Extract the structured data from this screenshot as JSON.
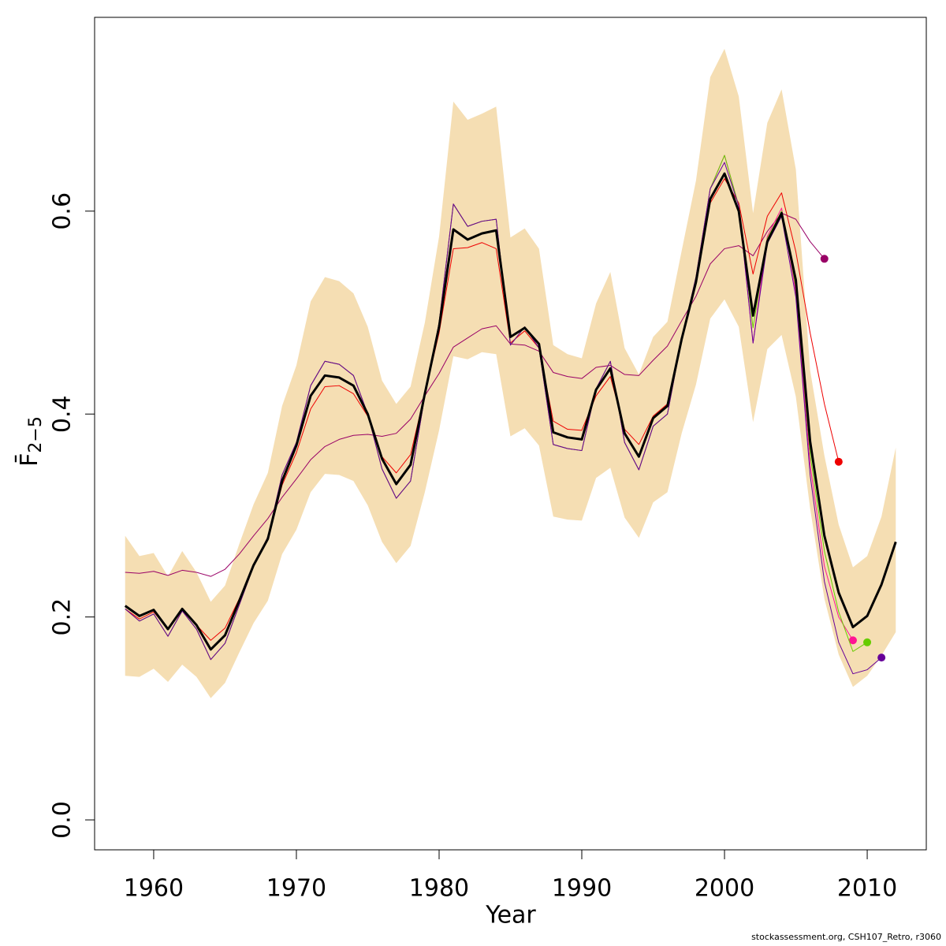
{
  "chart_data": {
    "type": "line",
    "xlabel": "Year",
    "ylabel": "F̄",
    "ylabel_subscript": "2−5",
    "footnote": "stockassessment.org, CSH107_Retro, r3060",
    "x": [
      1958,
      1959,
      1960,
      1961,
      1962,
      1963,
      1964,
      1965,
      1966,
      1967,
      1968,
      1969,
      1970,
      1971,
      1972,
      1973,
      1974,
      1975,
      1976,
      1977,
      1978,
      1979,
      1980,
      1981,
      1982,
      1983,
      1984,
      1985,
      1986,
      1987,
      1988,
      1989,
      1990,
      1991,
      1992,
      1993,
      1994,
      1995,
      1996,
      1997,
      1998,
      1999,
      2000,
      2001,
      2002,
      2003,
      2004,
      2005,
      2006,
      2007,
      2008,
      2009,
      2010,
      2011,
      2012
    ],
    "xlim": [
      1955.86,
      2014.14
    ],
    "xticks": [
      1960,
      1970,
      1980,
      1990,
      2000,
      2010
    ],
    "ylim": [
      -0.0295,
      0.791
    ],
    "yticks": [
      {
        "value": 0,
        "label": "0.0"
      },
      0.2,
      0.4,
      0.6
    ],
    "band": {
      "color": "#f5deb3",
      "upper": [
        0.28,
        0.26,
        0.263,
        0.24,
        0.265,
        0.244,
        0.215,
        0.231,
        0.272,
        0.311,
        0.342,
        0.408,
        0.448,
        0.511,
        0.535,
        0.531,
        0.519,
        0.486,
        0.433,
        0.41,
        0.427,
        0.49,
        0.575,
        0.708,
        0.69,
        0.696,
        0.703,
        0.574,
        0.583,
        0.563,
        0.468,
        0.459,
        0.455,
        0.509,
        0.54,
        0.465,
        0.439,
        0.476,
        0.491,
        0.561,
        0.63,
        0.732,
        0.76,
        0.713,
        0.598,
        0.687,
        0.72,
        0.641,
        0.443,
        0.359,
        0.291,
        0.249,
        0.26,
        0.299,
        0.367
      ],
      "lower": [
        0.142,
        0.141,
        0.149,
        0.136,
        0.153,
        0.141,
        0.12,
        0.135,
        0.165,
        0.194,
        0.216,
        0.262,
        0.286,
        0.323,
        0.341,
        0.34,
        0.334,
        0.31,
        0.274,
        0.253,
        0.27,
        0.323,
        0.384,
        0.457,
        0.454,
        0.461,
        0.459,
        0.378,
        0.386,
        0.369,
        0.299,
        0.296,
        0.295,
        0.337,
        0.347,
        0.298,
        0.278,
        0.313,
        0.323,
        0.381,
        0.429,
        0.494,
        0.513,
        0.486,
        0.392,
        0.464,
        0.478,
        0.417,
        0.307,
        0.218,
        0.163,
        0.131,
        0.142,
        0.162,
        0.185
      ]
    },
    "series": [
      {
        "color": "#990066",
        "end_marker": true,
        "values": [
          0.244,
          0.243,
          0.245,
          0.241,
          0.246,
          0.244,
          0.24,
          0.247,
          0.262,
          0.28,
          0.297,
          0.318,
          0.336,
          0.355,
          0.368,
          0.375,
          0.379,
          0.38,
          0.378,
          0.381,
          0.395,
          0.418,
          0.44,
          0.466,
          0.475,
          0.484,
          0.487,
          0.469,
          0.468,
          0.462,
          0.441,
          0.437,
          0.435,
          0.446,
          0.448,
          0.439,
          0.438,
          0.453,
          0.467,
          0.492,
          0.516,
          0.548,
          0.563,
          0.566,
          0.556,
          0.58,
          0.598,
          0.592,
          0.57,
          0.553,
          null,
          null,
          null,
          null,
          null
        ]
      },
      {
        "color": "#ee0000",
        "end_marker": true,
        "values": [
          0.208,
          0.198,
          0.205,
          0.188,
          0.206,
          0.192,
          0.177,
          0.189,
          0.218,
          0.25,
          0.277,
          0.33,
          0.362,
          0.405,
          0.427,
          0.428,
          0.42,
          0.398,
          0.358,
          0.342,
          0.36,
          0.42,
          0.48,
          0.563,
          0.564,
          0.569,
          0.563,
          0.47,
          0.482,
          0.465,
          0.393,
          0.385,
          0.384,
          0.418,
          0.437,
          0.385,
          0.37,
          0.398,
          0.41,
          0.474,
          0.53,
          0.608,
          0.632,
          0.608,
          0.538,
          0.595,
          0.618,
          0.56,
          0.48,
          0.41,
          0.353,
          null,
          null,
          null,
          null
        ]
      },
      {
        "color": "#ff1493",
        "end_marker": true,
        "values": [
          0.208,
          0.196,
          0.203,
          0.181,
          0.206,
          0.188,
          0.158,
          0.174,
          0.212,
          0.25,
          0.279,
          0.34,
          0.372,
          0.428,
          0.452,
          0.449,
          0.438,
          0.4,
          0.346,
          0.317,
          0.334,
          0.418,
          0.49,
          0.607,
          0.585,
          0.59,
          0.592,
          0.468,
          0.486,
          0.465,
          0.37,
          0.366,
          0.364,
          0.425,
          0.452,
          0.372,
          0.345,
          0.388,
          0.4,
          0.474,
          0.535,
          0.622,
          0.655,
          0.605,
          0.47,
          0.575,
          0.603,
          0.52,
          0.35,
          0.25,
          0.2,
          0.177,
          null,
          null,
          null
        ]
      },
      {
        "color": "#66cc00",
        "end_marker": true,
        "values": [
          0.208,
          0.196,
          0.203,
          0.181,
          0.206,
          0.188,
          0.158,
          0.174,
          0.212,
          0.25,
          0.279,
          0.34,
          0.372,
          0.428,
          0.452,
          0.449,
          0.438,
          0.4,
          0.346,
          0.317,
          0.334,
          0.418,
          0.49,
          0.607,
          0.585,
          0.59,
          0.592,
          0.468,
          0.486,
          0.465,
          0.37,
          0.366,
          0.364,
          0.425,
          0.452,
          0.372,
          0.345,
          0.388,
          0.4,
          0.474,
          0.535,
          0.622,
          0.655,
          0.605,
          0.485,
          0.573,
          0.6,
          0.525,
          0.36,
          0.265,
          0.205,
          0.166,
          0.175,
          null,
          null
        ]
      },
      {
        "color": "#660099",
        "end_marker": true,
        "values": [
          0.208,
          0.196,
          0.203,
          0.181,
          0.206,
          0.188,
          0.158,
          0.174,
          0.212,
          0.25,
          0.279,
          0.34,
          0.372,
          0.428,
          0.452,
          0.449,
          0.438,
          0.4,
          0.346,
          0.317,
          0.334,
          0.418,
          0.49,
          0.607,
          0.585,
          0.59,
          0.592,
          0.468,
          0.486,
          0.465,
          0.37,
          0.366,
          0.364,
          0.425,
          0.452,
          0.372,
          0.345,
          0.388,
          0.4,
          0.474,
          0.535,
          0.622,
          0.648,
          0.605,
          0.47,
          0.568,
          0.595,
          0.515,
          0.34,
          0.235,
          0.175,
          0.144,
          0.148,
          0.16,
          null
        ]
      },
      {
        "color": "#000000",
        "end_marker": false,
        "values": [
          0.211,
          0.201,
          0.207,
          0.188,
          0.208,
          0.192,
          0.168,
          0.182,
          0.216,
          0.251,
          0.277,
          0.334,
          0.369,
          0.418,
          0.438,
          0.436,
          0.428,
          0.4,
          0.356,
          0.331,
          0.35,
          0.42,
          0.486,
          0.582,
          0.572,
          0.578,
          0.581,
          0.476,
          0.485,
          0.469,
          0.382,
          0.377,
          0.375,
          0.424,
          0.445,
          0.381,
          0.358,
          0.396,
          0.408,
          0.474,
          0.53,
          0.612,
          0.637,
          0.6,
          0.497,
          0.57,
          0.598,
          0.532,
          0.373,
          0.28,
          0.224,
          0.19,
          0.201,
          0.232,
          0.274
        ]
      }
    ]
  }
}
